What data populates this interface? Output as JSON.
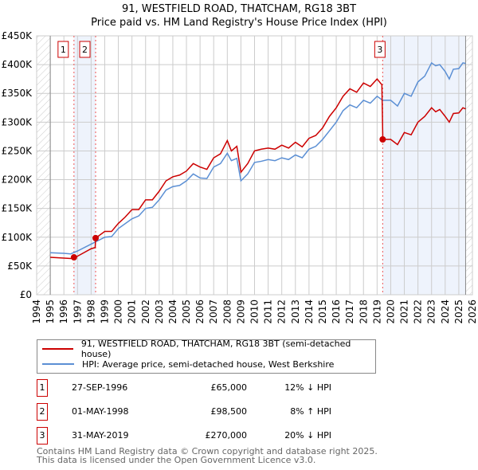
{
  "title": "91, WESTFIELD ROAD, THATCHAM, RG18 3BT",
  "subtitle": "Price paid vs. HM Land Registry's House Price Index (HPI)",
  "chart_data": {
    "type": "line",
    "xlim": [
      1994,
      2026
    ],
    "ylim": [
      0,
      450000
    ],
    "x_ticks": [
      1994,
      1995,
      1996,
      1997,
      1998,
      1999,
      2000,
      2001,
      2002,
      2003,
      2004,
      2005,
      2006,
      2007,
      2008,
      2009,
      2010,
      2011,
      2012,
      2013,
      2014,
      2015,
      2016,
      2017,
      2018,
      2019,
      2020,
      2021,
      2022,
      2023,
      2024,
      2025,
      2026
    ],
    "y_ticks": [
      {
        "v": 0,
        "label": "£0"
      },
      {
        "v": 50000,
        "label": "£50K"
      },
      {
        "v": 100000,
        "label": "£100K"
      },
      {
        "v": 150000,
        "label": "£150K"
      },
      {
        "v": 200000,
        "label": "£200K"
      },
      {
        "v": 250000,
        "label": "£250K"
      },
      {
        "v": 300000,
        "label": "£300K"
      },
      {
        "v": 350000,
        "label": "£350K"
      },
      {
        "v": 400000,
        "label": "£400K"
      },
      {
        "v": 450000,
        "label": "£450K"
      }
    ],
    "hatched_before": 1995,
    "hatched_after": 2025.5,
    "series": [
      {
        "name": "91, WESTFIELD ROAD, THATCHAM, RG18 3BT (semi-detached house)",
        "color": "#cc0000",
        "x": [
          1995,
          1996.5,
          1996.75,
          1997,
          1998,
          1998.3,
          1998.33,
          1999,
          1999.5,
          2000,
          2000.5,
          2001,
          2001.5,
          2002,
          2002.5,
          2003,
          2003.5,
          2004,
          2004.5,
          2005,
          2005.5,
          2006,
          2006.5,
          2007,
          2007.5,
          2008,
          2008.3,
          2008.7,
          2009,
          2009.5,
          2010,
          2010.5,
          2011,
          2011.5,
          2012,
          2012.5,
          2013,
          2013.5,
          2014,
          2014.5,
          2015,
          2015.5,
          2016,
          2016.5,
          2017,
          2017.5,
          2018,
          2018.5,
          2019,
          2019.35,
          2019.42,
          2020,
          2020.5,
          2021,
          2021.5,
          2022,
          2022.5,
          2023,
          2023.3,
          2023.6,
          2024,
          2024.3,
          2024.6,
          2025,
          2025.3,
          2025.5
        ],
        "y": [
          65000,
          63000,
          65000,
          67000,
          80000,
          82000,
          98500,
          110000,
          110000,
          124000,
          135000,
          148000,
          148000,
          165000,
          165000,
          180000,
          198000,
          205000,
          208000,
          215000,
          228000,
          222000,
          218000,
          238000,
          245000,
          268000,
          250000,
          258000,
          213000,
          228000,
          250000,
          253000,
          255000,
          253000,
          260000,
          255000,
          265000,
          257000,
          272000,
          277000,
          290000,
          310000,
          325000,
          345000,
          358000,
          352000,
          368000,
          362000,
          375000,
          365000,
          270000,
          270000,
          261000,
          282000,
          278000,
          300000,
          310000,
          325000,
          318000,
          322000,
          310000,
          300000,
          315000,
          316000,
          325000,
          323000
        ]
      },
      {
        "name": "HPI: Average price, semi-detached house, West Berkshire",
        "color": "#5b8fd4",
        "x": [
          1995,
          1996,
          1996.5,
          1997,
          1998,
          1998.5,
          1999,
          1999.5,
          2000,
          2001,
          2001.5,
          2002,
          2002.5,
          2003,
          2003.5,
          2004,
          2004.5,
          2005,
          2005.5,
          2006,
          2006.5,
          2007,
          2007.5,
          2008,
          2008.3,
          2008.7,
          2009,
          2009.5,
          2010,
          2010.5,
          2011,
          2011.5,
          2012,
          2012.5,
          2013,
          2013.5,
          2014,
          2014.5,
          2015,
          2015.5,
          2016,
          2016.5,
          2017,
          2017.5,
          2018,
          2018.5,
          2019,
          2019.4,
          2020,
          2020.5,
          2021,
          2021.5,
          2022,
          2022.5,
          2023,
          2023.3,
          2023.6,
          2024,
          2024.3,
          2024.6,
          2025,
          2025.3,
          2025.5
        ],
        "y": [
          73000,
          72000,
          71000,
          76000,
          88000,
          94000,
          100000,
          101000,
          115000,
          132000,
          137000,
          150000,
          152000,
          165000,
          182000,
          188000,
          190000,
          198000,
          210000,
          203000,
          202000,
          222000,
          228000,
          246000,
          233000,
          237000,
          198000,
          210000,
          230000,
          232000,
          235000,
          233000,
          238000,
          235000,
          243000,
          238000,
          253000,
          258000,
          270000,
          285000,
          300000,
          320000,
          330000,
          325000,
          338000,
          333000,
          345000,
          338000,
          338000,
          328000,
          350000,
          345000,
          370000,
          380000,
          403000,
          398000,
          400000,
          388000,
          375000,
          392000,
          393000,
          403000,
          402000
        ]
      }
    ],
    "sales": [
      {
        "id": "1",
        "x": 1996.74,
        "y": 65000,
        "date": "27-SEP-1996",
        "price": "£65,000",
        "hpi": "12% ↓ HPI"
      },
      {
        "id": "2",
        "x": 1998.33,
        "y": 98500,
        "date": "01-MAY-1998",
        "price": "£98,500",
        "hpi": "8% ↑ HPI"
      },
      {
        "id": "3",
        "x": 2019.41,
        "y": 270000,
        "date": "31-MAY-2019",
        "price": "£270,000",
        "hpi": "20% ↓ HPI"
      }
    ]
  },
  "legend": {
    "property": "91, WESTFIELD ROAD, THATCHAM, RG18 3BT (semi-detached house)",
    "hpi": "HPI: Average price, semi-detached house, West Berkshire"
  },
  "footer": {
    "line1": "Contains HM Land Registry data © Crown copyright and database right 2025.",
    "line2": "This data is licensed under the Open Government Licence v3.0."
  }
}
